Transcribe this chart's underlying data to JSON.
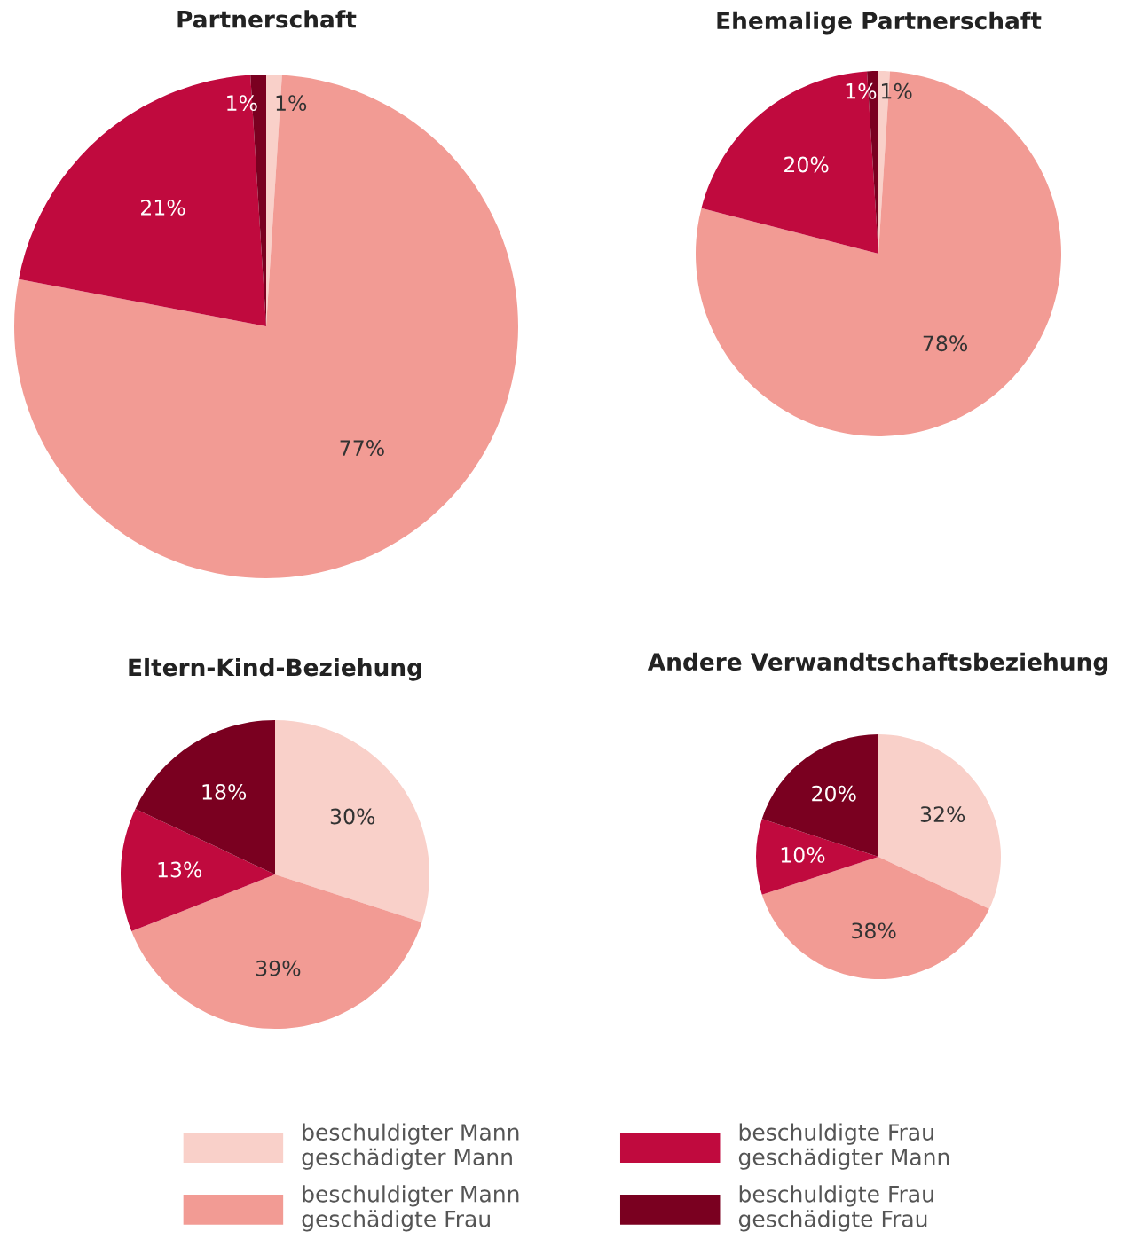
{
  "chart_data": [
    {
      "type": "pie",
      "title": "Partnerschaft",
      "categories": [
        "beschuldigter Mann\ngeschädigter Mann",
        "beschuldigter Mann\ngeschädigte Frau",
        "beschuldigte Frau\ngeschädigter Mann",
        "beschuldigte Frau\ngeschädigte Frau"
      ],
      "values": [
        1,
        77,
        21,
        1
      ],
      "value_labels": [
        "1%",
        "77%",
        "21%",
        "1%"
      ],
      "colors": [
        "#f9d0c9",
        "#f29b94",
        "#c00a3e",
        "#7a0020"
      ],
      "legend": "bottom"
    },
    {
      "type": "pie",
      "title": "Ehemalige Partnerschaft",
      "categories": [
        null,
        null,
        null,
        null
      ],
      "values": [
        1,
        78,
        20,
        1
      ],
      "value_labels": [
        "1%",
        "78%",
        "20%",
        "1%"
      ],
      "colors": [
        "#f9d0c9",
        "#f29b94",
        "#c00a3e",
        "#7a0020"
      ]
    },
    {
      "type": "pie",
      "title": "Eltern-Kind-Beziehung",
      "categories": [
        null,
        null,
        null,
        null
      ],
      "values": [
        30,
        39,
        13,
        18
      ],
      "value_labels": [
        "30%",
        "39%",
        "13%",
        "18%"
      ],
      "colors": [
        "#f9d0c9",
        "#f29b94",
        "#c00a3e",
        "#7a0020"
      ]
    },
    {
      "type": "pie",
      "title": "Andere Verwandtschaftsbeziehung",
      "categories": [
        null,
        null,
        null,
        null
      ],
      "values": [
        32,
        38,
        10,
        20
      ],
      "value_labels": [
        "32%",
        "38%",
        "10%",
        "20%"
      ],
      "colors": [
        "#f9d0c9",
        "#f29b94",
        "#c00a3e",
        "#7a0020"
      ]
    }
  ]
}
